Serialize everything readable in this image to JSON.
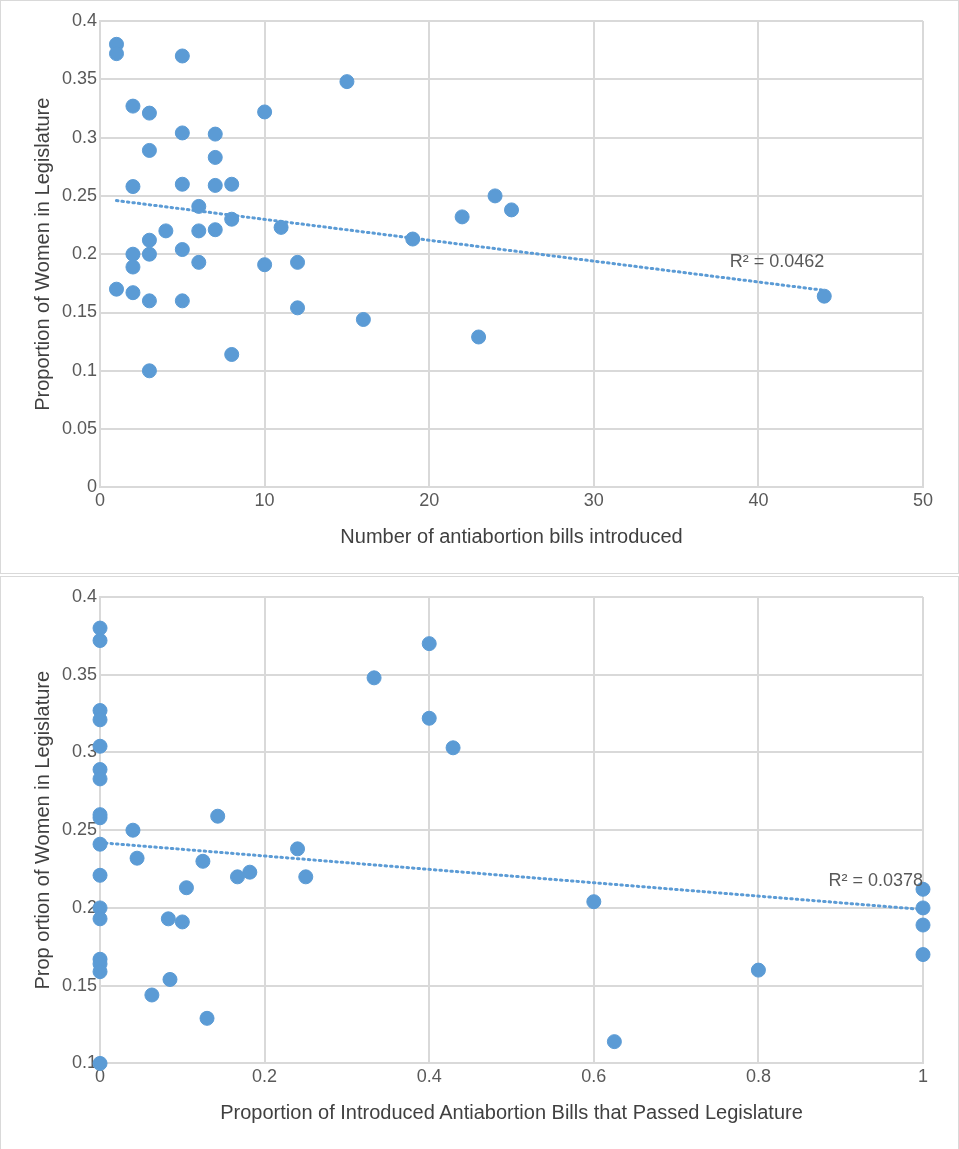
{
  "chart_data": [
    {
      "type": "scatter",
      "xlabel": "Number of antiabortion bills introduced",
      "ylabel": "Proportion of Women in Legislature",
      "xlim": [
        0,
        50
      ],
      "xticks": [
        0,
        10,
        20,
        30,
        40,
        50
      ],
      "ylim": [
        0,
        0.4
      ],
      "yticks": [
        0,
        0.05,
        0.1,
        0.15,
        0.2,
        0.25,
        0.3,
        0.35,
        0.4
      ],
      "grid": true,
      "legend": false,
      "marker": "circle",
      "annotations": [
        "R² = 0.0462"
      ],
      "series": [
        {
          "color": "#5b9bd5",
          "x": [
            1,
            1,
            5,
            15,
            2,
            3,
            10,
            5,
            7,
            3,
            7,
            2,
            5,
            7,
            8,
            24,
            25,
            6,
            22,
            8,
            11,
            4,
            6,
            7,
            19,
            3,
            2,
            3,
            5,
            2,
            6,
            10,
            12,
            44,
            1,
            2,
            3,
            5,
            12,
            16,
            23,
            8,
            3
          ],
          "values": [
            0.38,
            0.372,
            0.37,
            0.348,
            0.327,
            0.321,
            0.322,
            0.304,
            0.303,
            0.289,
            0.283,
            0.258,
            0.26,
            0.259,
            0.26,
            0.25,
            0.238,
            0.241,
            0.232,
            0.23,
            0.223,
            0.22,
            0.22,
            0.221,
            0.213,
            0.212,
            0.2,
            0.2,
            0.204,
            0.189,
            0.193,
            0.191,
            0.193,
            0.164,
            0.17,
            0.167,
            0.16,
            0.16,
            0.154,
            0.144,
            0.129,
            0.114,
            0.1
          ]
        },
        {
          "type": "line",
          "color": "#5b9bd5",
          "line_style": "dotted",
          "marker": "none",
          "x": [
            1,
            44
          ],
          "values": [
            0.246,
            0.169
          ]
        }
      ]
    },
    {
      "type": "scatter",
      "xlabel": "Proportion of Introduced Antiabortion Bills that Passed Legislature",
      "ylabel": "Prop ortion of Women in Legislature",
      "xlim": [
        0,
        1
      ],
      "xticks": [
        0,
        0.2,
        0.4,
        0.6,
        0.8,
        1
      ],
      "ylim": [
        0.1,
        0.4
      ],
      "yticks": [
        0.1,
        0.15,
        0.2,
        0.25,
        0.3,
        0.35,
        0.4
      ],
      "grid": true,
      "legend": false,
      "marker": "circle",
      "annotations": [
        "R² = 0.0378"
      ],
      "series": [
        {
          "color": "#5b9bd5",
          "x": [
            0,
            0,
            0,
            0,
            0,
            0,
            0,
            0,
            0,
            0,
            0,
            0,
            0,
            0,
            0,
            0,
            0,
            0.04,
            0.045,
            0.063,
            0.083,
            0.085,
            0.1,
            0.105,
            0.125,
            0.13,
            0.143,
            0.167,
            0.182,
            0.24,
            0.25,
            0.333,
            0.4,
            0.4,
            0.429,
            0.6,
            0.625,
            0.8,
            1,
            1,
            1,
            1
          ],
          "values": [
            0.38,
            0.372,
            0.327,
            0.321,
            0.304,
            0.289,
            0.283,
            0.26,
            0.258,
            0.241,
            0.221,
            0.2,
            0.193,
            0.167,
            0.164,
            0.159,
            0.1,
            0.25,
            0.232,
            0.144,
            0.193,
            0.154,
            0.191,
            0.213,
            0.23,
            0.129,
            0.259,
            0.22,
            0.223,
            0.238,
            0.22,
            0.348,
            0.37,
            0.322,
            0.303,
            0.204,
            0.114,
            0.16,
            0.212,
            0.2,
            0.189,
            0.17
          ]
        },
        {
          "type": "line",
          "color": "#5b9bd5",
          "line_style": "dotted",
          "marker": "none",
          "x": [
            0,
            1
          ],
          "values": [
            0.242,
            0.199
          ]
        }
      ]
    }
  ]
}
